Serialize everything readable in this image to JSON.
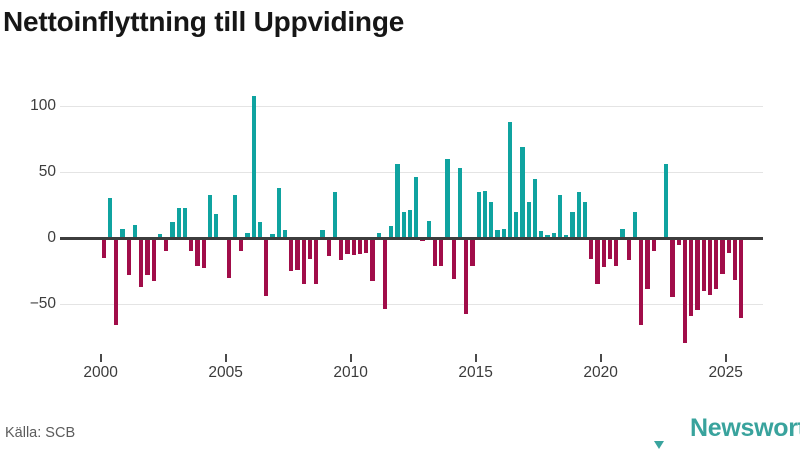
{
  "title": "Nettoinflyttning till Uppvidinge",
  "source": "Källa: SCB",
  "branding": {
    "name": "Newsworthy",
    "logo_icon": "badge-barchart-icon",
    "color": "#3aa49e"
  },
  "chart_data": {
    "type": "bar",
    "title": "Nettoinflyttning till Uppvidinge",
    "frequency": "quarterly",
    "start_year": 2000,
    "start_quarter": 1,
    "end_label": "2025 Q3",
    "x_ticks": [
      2000,
      2005,
      2010,
      2015,
      2020,
      2025
    ],
    "x_tick_labels": [
      "2000",
      "2005",
      "2010",
      "2015",
      "2020",
      "2025"
    ],
    "y_ticks": [
      100,
      50,
      0,
      -50
    ],
    "y_tick_labels": [
      "100",
      "50",
      "0",
      "−50"
    ],
    "ylim": [
      -100,
      115
    ],
    "grid": "horizontal",
    "legend": "none",
    "positive_color": "#0fa3a0",
    "negative_color": "#a10d49",
    "values": [
      -15,
      30,
      -66,
      7,
      -28,
      10,
      -37,
      -28,
      -33,
      3,
      -10,
      12,
      23,
      23,
      -10,
      -21,
      -23,
      33,
      18,
      0,
      -30,
      33,
      -10,
      4,
      108,
      12,
      -44,
      3,
      38,
      6,
      -25,
      -24,
      -35,
      -16,
      -35,
      6,
      -14,
      35,
      -17,
      -12,
      -13,
      -12,
      -11,
      -33,
      4,
      -54,
      9,
      56,
      20,
      21,
      46,
      -2,
      13,
      -21,
      -21,
      60,
      -31,
      53,
      -58,
      -21,
      35,
      36,
      27,
      6,
      7,
      88,
      20,
      69,
      27,
      45,
      5,
      2,
      4,
      33,
      2,
      20,
      35,
      27,
      -16,
      -35,
      -22,
      -16,
      -21,
      7,
      -17,
      20,
      -66,
      -39,
      -10,
      0,
      56,
      -45,
      -5,
      -80,
      -59,
      -55,
      -40,
      -43,
      -39,
      -27,
      -11,
      -32,
      -61
    ]
  }
}
